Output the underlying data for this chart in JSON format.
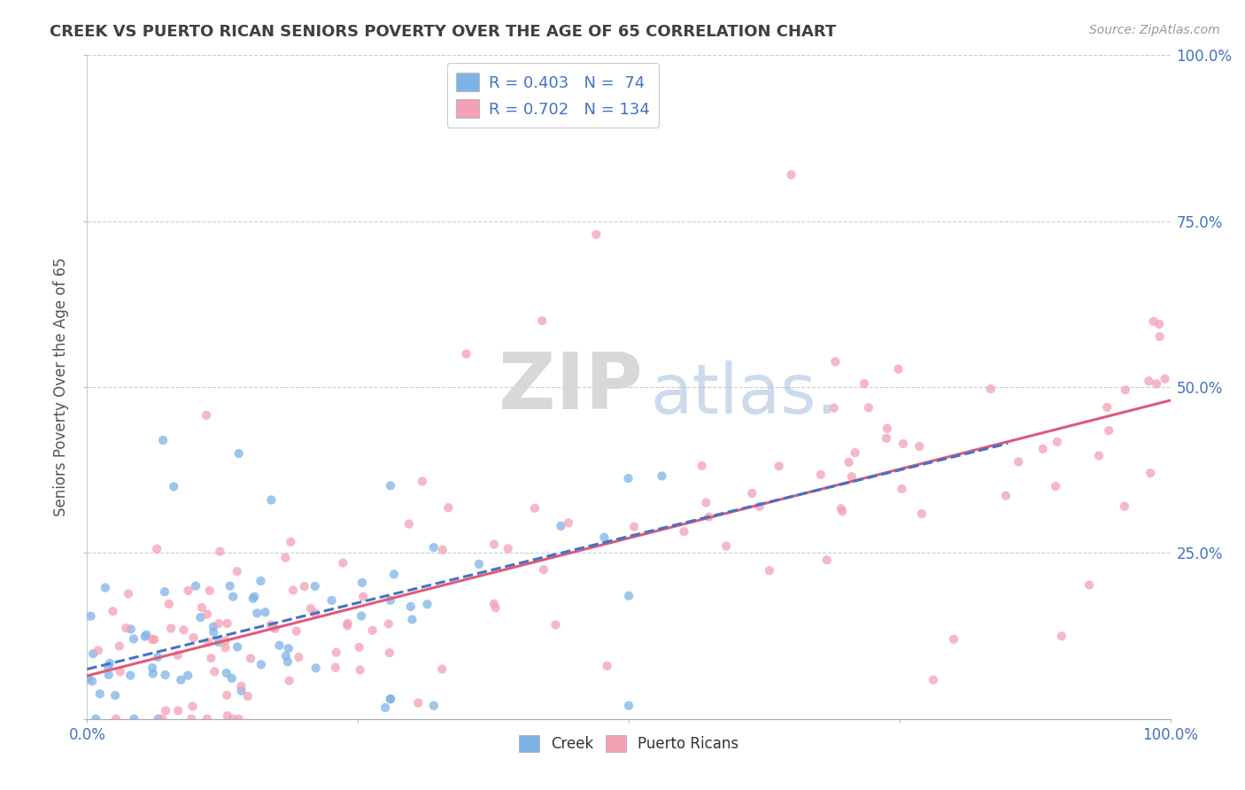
{
  "title": "CREEK VS PUERTO RICAN SENIORS POVERTY OVER THE AGE OF 65 CORRELATION CHART",
  "source": "Source: ZipAtlas.com",
  "ylabel": "Seniors Poverty Over the Age of 65",
  "creek_color": "#7eb3e8",
  "pr_color": "#f4a0b5",
  "creek_line_color": "#4472c4",
  "pr_line_color": "#e05a7a",
  "creek_R": 0.403,
  "creek_N": 74,
  "pr_R": 0.702,
  "pr_N": 134,
  "background_color": "#ffffff",
  "grid_color": "#c8c8c8",
  "title_color": "#404040",
  "axis_label_color": "#555555",
  "tick_label_color": "#4472c4",
  "legend_R_color": "#4472c4",
  "watermark_zip": "ZIP",
  "watermark_atlas": "atlas.",
  "creek_line_intercept": 0.075,
  "creek_line_slope": 0.4,
  "pr_line_intercept": 0.065,
  "pr_line_slope": 0.415
}
